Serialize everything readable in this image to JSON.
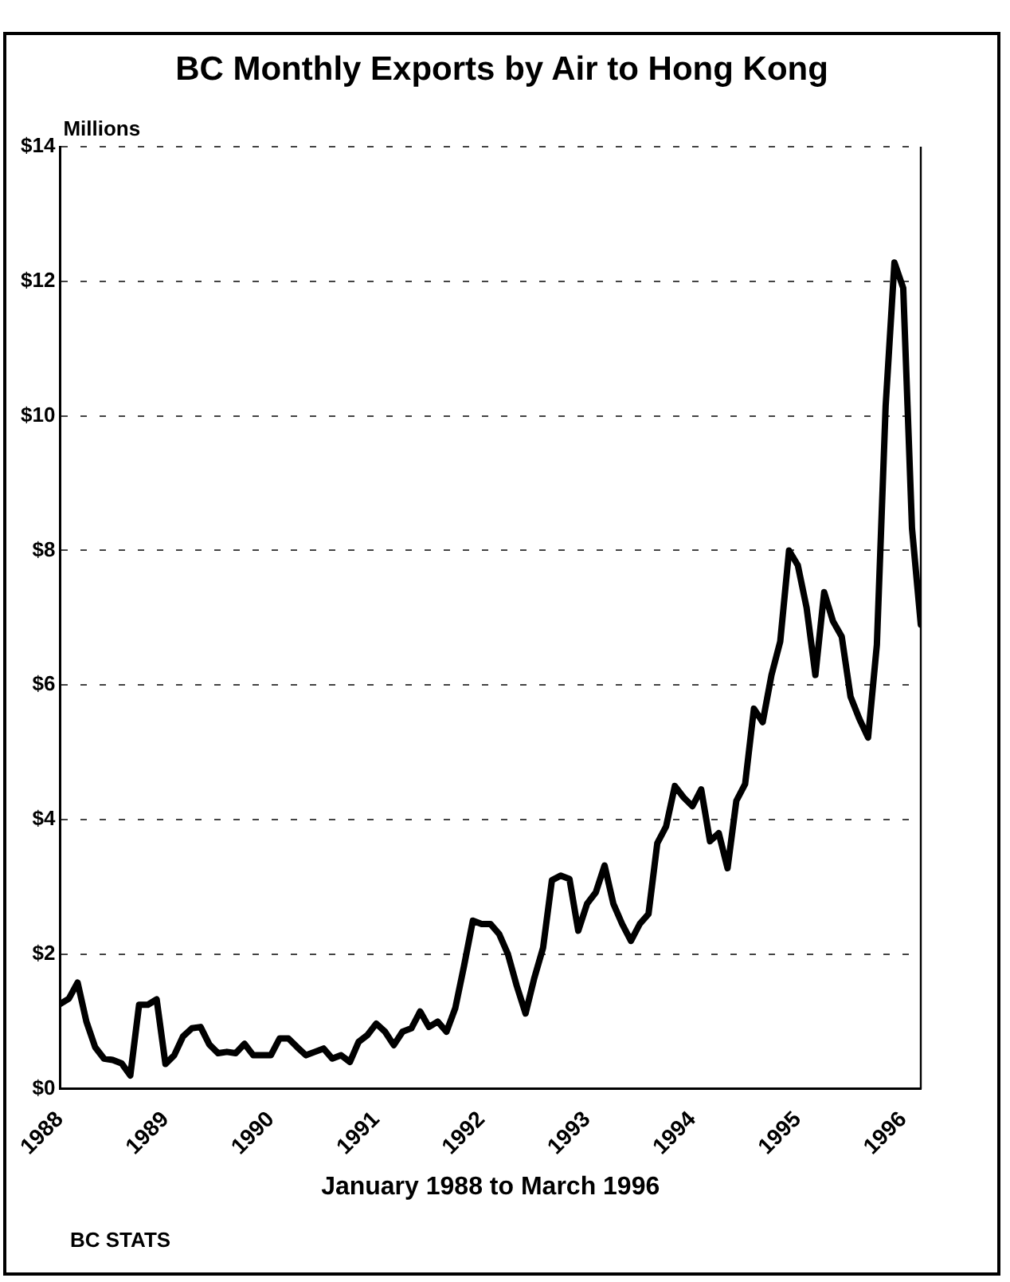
{
  "chart_data": {
    "type": "line",
    "title": "BC Monthly Exports by Air to Hong Kong",
    "xlabel": "January 1988 to March 1996",
    "ylabel": "Millions",
    "annotations": [
      "BC STATS"
    ],
    "x": [
      "1988-01",
      "1988-02",
      "1988-03",
      "1988-04",
      "1988-05",
      "1988-06",
      "1988-07",
      "1988-08",
      "1988-09",
      "1988-10",
      "1988-11",
      "1988-12",
      "1989-01",
      "1989-02",
      "1989-03",
      "1989-04",
      "1989-05",
      "1989-06",
      "1989-07",
      "1989-08",
      "1989-09",
      "1989-10",
      "1989-11",
      "1989-12",
      "1990-01",
      "1990-02",
      "1990-03",
      "1990-04",
      "1990-05",
      "1990-06",
      "1990-07",
      "1990-08",
      "1990-09",
      "1990-10",
      "1990-11",
      "1990-12",
      "1991-01",
      "1991-02",
      "1991-03",
      "1991-04",
      "1991-05",
      "1991-06",
      "1991-07",
      "1991-08",
      "1991-09",
      "1991-10",
      "1991-11",
      "1991-12",
      "1992-01",
      "1992-02",
      "1992-03",
      "1992-04",
      "1992-05",
      "1992-06",
      "1992-07",
      "1992-08",
      "1992-09",
      "1992-10",
      "1992-11",
      "1992-12",
      "1993-01",
      "1993-02",
      "1993-03",
      "1993-04",
      "1993-05",
      "1993-06",
      "1993-07",
      "1993-08",
      "1993-09",
      "1993-10",
      "1993-11",
      "1993-12",
      "1994-01",
      "1994-02",
      "1994-03",
      "1994-04",
      "1994-05",
      "1994-06",
      "1994-07",
      "1994-08",
      "1994-09",
      "1994-10",
      "1994-11",
      "1994-12",
      "1995-01",
      "1995-02",
      "1995-03",
      "1995-04",
      "1995-05",
      "1995-06",
      "1995-07",
      "1995-08",
      "1995-09",
      "1995-10",
      "1995-11",
      "1995-12",
      "1996-01",
      "1996-02",
      "1996-03"
    ],
    "series": [
      {
        "color": "#000000",
        "values": [
          1.26,
          1.34,
          1.58,
          1.0,
          0.62,
          0.45,
          0.43,
          0.38,
          0.2,
          1.25,
          1.25,
          1.33,
          0.37,
          0.5,
          0.78,
          0.9,
          0.92,
          0.66,
          0.53,
          0.55,
          0.53,
          0.67,
          0.5,
          0.5,
          0.5,
          0.75,
          0.75,
          0.62,
          0.5,
          0.55,
          0.6,
          0.45,
          0.5,
          0.4,
          0.7,
          0.8,
          0.97,
          0.85,
          0.65,
          0.85,
          0.9,
          1.15,
          0.92,
          1.0,
          0.85,
          1.2,
          1.83,
          2.5,
          2.45,
          2.45,
          2.3,
          2.0,
          1.53,
          1.12,
          1.65,
          2.1,
          3.1,
          3.17,
          3.12,
          2.35,
          2.75,
          2.92,
          3.32,
          2.75,
          2.45,
          2.2,
          2.45,
          2.6,
          3.65,
          3.9,
          4.5,
          4.33,
          4.2,
          4.45,
          3.68,
          3.8,
          3.28,
          4.28,
          4.53,
          5.65,
          5.45,
          6.15,
          6.65,
          8.0,
          7.78,
          7.15,
          6.15,
          7.38,
          6.95,
          6.72,
          5.83,
          5.5,
          5.22,
          6.6,
          10.15,
          12.28,
          11.9,
          8.33,
          6.9
        ]
      }
    ],
    "xlim": [
      "1988-01",
      "1996-03"
    ],
    "xticks": [
      {
        "value": "1988-01",
        "label": "1988"
      },
      {
        "value": "1989-01",
        "label": "1989"
      },
      {
        "value": "1990-01",
        "label": "1990"
      },
      {
        "value": "1991-01",
        "label": "1991"
      },
      {
        "value": "1992-01",
        "label": "1992"
      },
      {
        "value": "1993-01",
        "label": "1993"
      },
      {
        "value": "1994-01",
        "label": "1994"
      },
      {
        "value": "1995-01",
        "label": "1995"
      },
      {
        "value": "1996-01",
        "label": "1996"
      }
    ],
    "ylim": [
      0,
      14
    ],
    "yticks": [
      {
        "value": 0,
        "label": "$0"
      },
      {
        "value": 2,
        "label": "$2"
      },
      {
        "value": 4,
        "label": "$4"
      },
      {
        "value": 6,
        "label": "$6"
      },
      {
        "value": 8,
        "label": "$8"
      },
      {
        "value": 10,
        "label": "$10"
      },
      {
        "value": 12,
        "label": "$12"
      },
      {
        "value": 14,
        "label": "$14"
      }
    ],
    "grid": "y",
    "legend": false,
    "marker": "none",
    "line_style": "solid"
  }
}
